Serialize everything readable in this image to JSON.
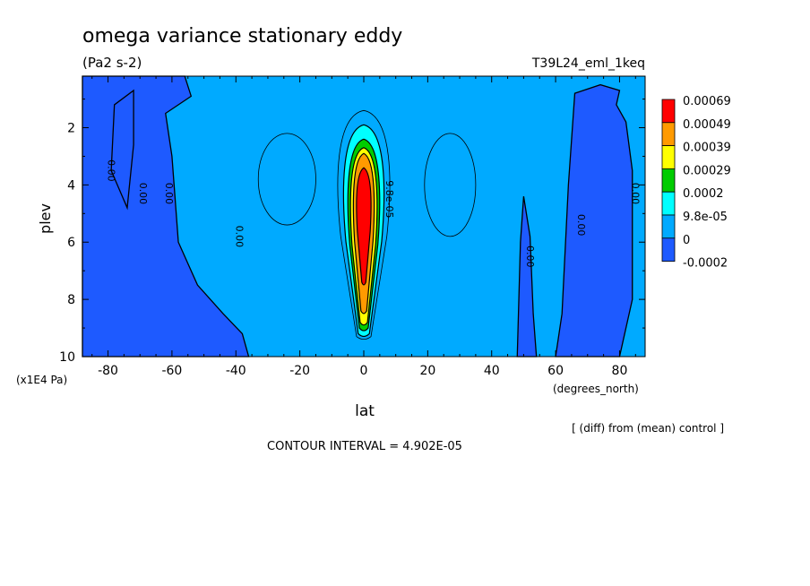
{
  "chart_data": {
    "type": "heatmap",
    "title": "omega variance stationary eddy",
    "units": "(Pa2 s-2)",
    "run_label": "T39L24_eml_1keq",
    "xlabel": "lat",
    "xunits": "(degrees_north)",
    "ylabel": "plev",
    "yunits": "(x1E4 Pa)",
    "note": "[ (diff) from (mean) control ]",
    "contour_interval": "CONTOUR INTERVAL = 4.902E-05",
    "xlim": [
      -88,
      88
    ],
    "ylim": [
      10,
      0.2
    ],
    "x_ticks": [
      {
        "v": -80,
        "label": "-80"
      },
      {
        "v": -60,
        "label": "-60"
      },
      {
        "v": -40,
        "label": "-40"
      },
      {
        "v": -20,
        "label": "-20"
      },
      {
        "v": 0,
        "label": "0"
      },
      {
        "v": 20,
        "label": "20"
      },
      {
        "v": 40,
        "label": "40"
      },
      {
        "v": 60,
        "label": "60"
      },
      {
        "v": 80,
        "label": "80"
      }
    ],
    "y_ticks": [
      {
        "v": 2,
        "label": "2"
      },
      {
        "v": 4,
        "label": "4"
      },
      {
        "v": 6,
        "label": "6"
      },
      {
        "v": 8,
        "label": "8"
      },
      {
        "v": 10,
        "label": "10"
      }
    ],
    "color_levels": [
      {
        "label": "0.00069",
        "color": "#ff0000"
      },
      {
        "label": "0.00049",
        "color": "#ff9a00"
      },
      {
        "label": "0.00039",
        "color": "#ffff00"
      },
      {
        "label": "0.00029",
        "color": "#00cc00"
      },
      {
        "label": "0.0002",
        "color": "#00ffff"
      },
      {
        "label": "9.8e-05",
        "color": "#00aaff"
      },
      {
        "label": "0",
        "color": "#1e5aff"
      },
      {
        "label": "-0.0002",
        "color": "#1e5aff"
      }
    ],
    "background_color": "#00aaff",
    "negative_regions": [
      {
        "name": "negative-region-south-pole",
        "points": [
          [
            -88,
            0.2
          ],
          [
            -56,
            0.2
          ],
          [
            -54,
            0.9
          ],
          [
            -62,
            1.5
          ],
          [
            -60,
            3
          ],
          [
            -58,
            6
          ],
          [
            -52,
            7.5
          ],
          [
            -44,
            8.5
          ],
          [
            -38,
            9.2
          ],
          [
            -36,
            10
          ],
          [
            -88,
            10
          ]
        ]
      },
      {
        "name": "negative-region-south-mid",
        "points": [
          [
            -78,
            1.2
          ],
          [
            -72,
            0.7
          ],
          [
            -72,
            2.6
          ],
          [
            -74,
            4.8
          ],
          [
            -79,
            3.5
          ]
        ]
      },
      {
        "name": "negative-region-north-mid",
        "points": [
          [
            66,
            0.8
          ],
          [
            74,
            0.5
          ],
          [
            80,
            0.7
          ],
          [
            79,
            1.2
          ],
          [
            82,
            1.8
          ],
          [
            84,
            3.5
          ],
          [
            84,
            8
          ],
          [
            80,
            10
          ],
          [
            60,
            10
          ],
          [
            62,
            8.5
          ],
          [
            64,
            4
          ]
        ]
      },
      {
        "name": "negative-region-north-tongue",
        "points": [
          [
            48,
            10
          ],
          [
            49,
            6
          ],
          [
            50,
            4.4
          ],
          [
            52,
            5.8
          ],
          [
            53,
            8.5
          ],
          [
            54,
            10
          ]
        ]
      }
    ],
    "tropical_core": {
      "lat_center": 0,
      "bands": [
        {
          "color": "#00aaff",
          "p_top": 1.4,
          "p_bot": 9.3,
          "half_width": 9
        },
        {
          "color": "#00ffff",
          "p_top": 1.9,
          "p_bot": 9.2,
          "half_width": 7
        },
        {
          "color": "#00cc00",
          "p_top": 2.4,
          "p_bot": 9.0,
          "half_width": 5.5
        },
        {
          "color": "#ffff00",
          "p_top": 2.7,
          "p_bot": 8.8,
          "half_width": 4.6
        },
        {
          "color": "#ff9a00",
          "p_top": 2.9,
          "p_bot": 8.4,
          "half_width": 3.6
        },
        {
          "color": "#ff0000",
          "p_top": 3.4,
          "p_bot": 7.4,
          "half_width": 2.5
        }
      ]
    },
    "contour_labels": [
      {
        "x": -80,
        "y": 3.5,
        "label": "0.00"
      },
      {
        "x": -70,
        "y": 4.3,
        "label": "0.00"
      },
      {
        "x": -62,
        "y": 4.3,
        "label": "0.00"
      },
      {
        "x": -40,
        "y": 5.8,
        "label": "0.00"
      },
      {
        "x": 7,
        "y": 4.5,
        "label": "9.8e-05"
      },
      {
        "x": 51,
        "y": 6.5,
        "label": "0.00"
      },
      {
        "x": 67,
        "y": 5.4,
        "label": "0.00"
      },
      {
        "x": 84,
        "y": 4.3,
        "label": "0.00"
      }
    ],
    "grid": false,
    "legend_placement": "right"
  }
}
